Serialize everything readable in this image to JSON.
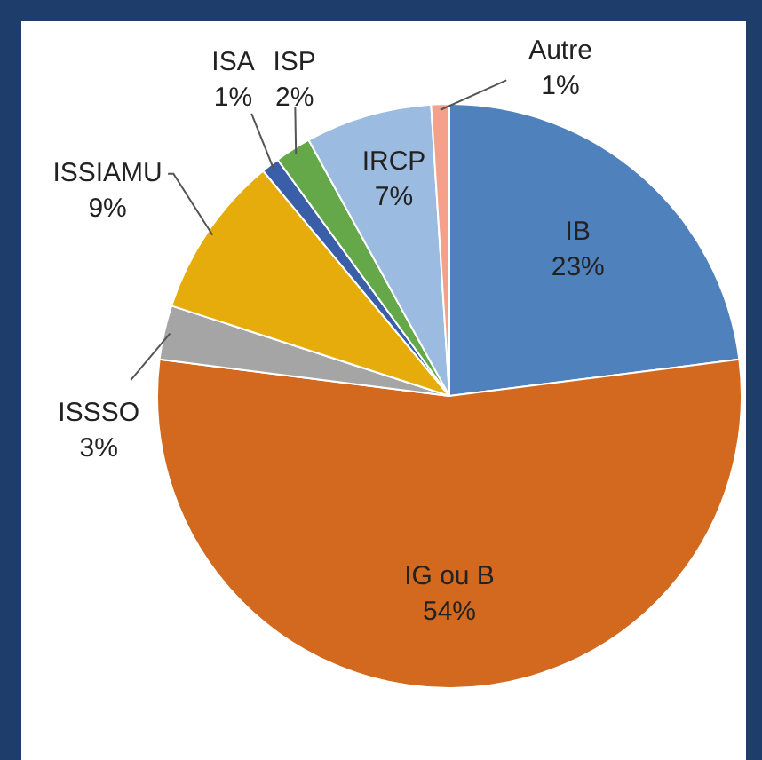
{
  "chart_data": {
    "type": "pie",
    "categories": [
      "IB",
      "IG ou B",
      "ISSSO",
      "ISSIAMU",
      "ISA",
      "ISP",
      "IRCP",
      "Autre"
    ],
    "values": [
      23,
      54,
      3,
      9,
      1,
      2,
      7,
      1
    ],
    "value_labels": [
      "23%",
      "54%",
      "3%",
      "9%",
      "1%",
      "2%",
      "7%",
      "1%"
    ],
    "colors": [
      "#4f81bd",
      "#d2691e",
      "#a5a5a5",
      "#e6ac0c",
      "#3a5ea8",
      "#65a84a",
      "#9bbbe0",
      "#f4a08a"
    ],
    "legend": false
  }
}
